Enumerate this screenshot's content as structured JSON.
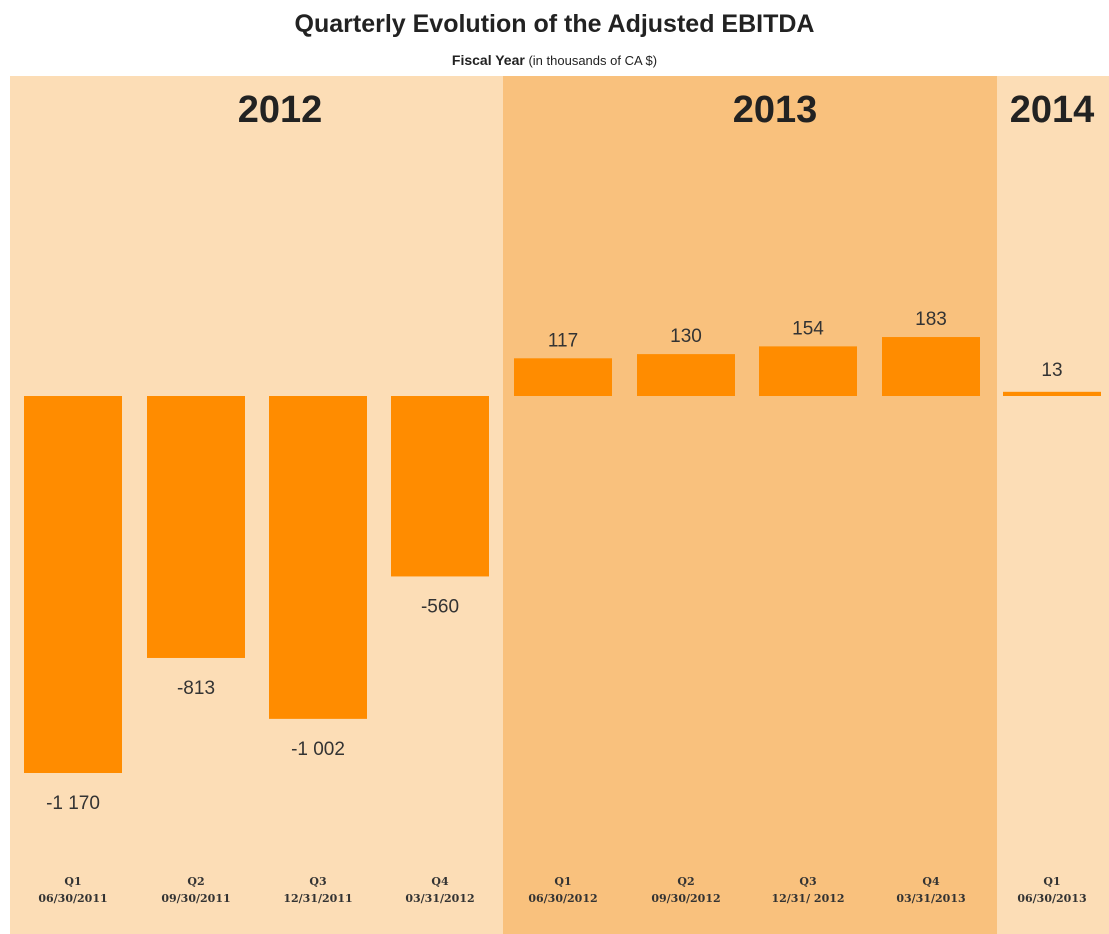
{
  "title": "Quarterly Evolution of the Adjusted EBITDA",
  "subtitle_strong": "Fiscal Year",
  "subtitle_rest": "(in thousands  of CA $)",
  "colors": {
    "bar": "#FF8C00",
    "band_light": "#FCDDB6",
    "band_dark": "#F9C17D"
  },
  "chart_data": {
    "type": "bar",
    "title": "Quarterly Evolution of the Adjusted EBITDA",
    "subtitle": "Fiscal Year (in thousands  of CA $)",
    "groups": [
      {
        "year": "2012",
        "shade": "light"
      },
      {
        "year": "2013",
        "shade": "dark"
      },
      {
        "year": "2014",
        "shade": "light"
      }
    ],
    "categories": [
      {
        "quarter": "Q1",
        "date": "06/30/2011",
        "group": "2012",
        "value": -1170,
        "label": "-1 170"
      },
      {
        "quarter": "Q2",
        "date": "09/30/2011",
        "group": "2012",
        "value": -813,
        "label": "-813"
      },
      {
        "quarter": "Q3",
        "date": "12/31/2011",
        "group": "2012",
        "value": -1002,
        "label": "-1 002"
      },
      {
        "quarter": "Q4",
        "date": "03/31/2012",
        "group": "2012",
        "value": -560,
        "label": "-560"
      },
      {
        "quarter": "Q1",
        "date": "06/30/2012",
        "group": "2013",
        "value": 117,
        "label": "117"
      },
      {
        "quarter": "Q2",
        "date": "09/30/2012",
        "group": "2013",
        "value": 130,
        "label": "130"
      },
      {
        "quarter": "Q3",
        "date": "12/31/ 2012",
        "group": "2013",
        "value": 154,
        "label": "154"
      },
      {
        "quarter": "Q4",
        "date": "03/31/2013",
        "group": "2013",
        "value": 183,
        "label": "183"
      },
      {
        "quarter": "Q1",
        "date": "06/30/2013",
        "group": "2014",
        "value": 13,
        "label": "13"
      }
    ],
    "xlabel": "",
    "ylabel": "",
    "grid": false,
    "legend": "none"
  }
}
